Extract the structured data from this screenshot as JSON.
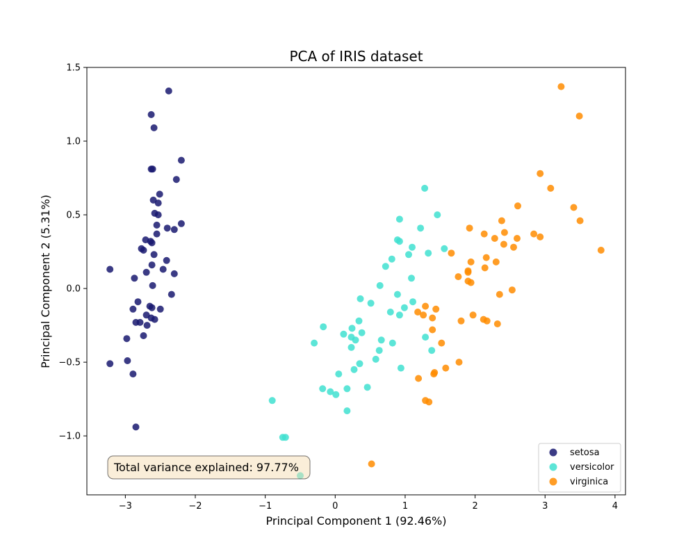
{
  "chart_data": {
    "type": "scatter",
    "title": "PCA of IRIS dataset",
    "xlabel": "Principal Component 1 (92.46%)",
    "ylabel": "Principal Component 2 (5.31%)",
    "xlim": [
      -3.55,
      4.15
    ],
    "ylim": [
      -1.4,
      1.5
    ],
    "xticks": [
      -3,
      -2,
      -1,
      0,
      1,
      2,
      3,
      4
    ],
    "xtick_labels": [
      "−3",
      "−2",
      "−1",
      "0",
      "1",
      "2",
      "3",
      "4"
    ],
    "yticks": [
      -1.0,
      -0.5,
      0.0,
      0.5,
      1.0,
      1.5
    ],
    "ytick_labels": [
      "−1.0",
      "−0.5",
      "0.0",
      "0.5",
      "1.0",
      "1.5"
    ],
    "grid": false,
    "legend_position": "bottom-right",
    "annotation": "Total variance explained: 97.77%",
    "annotation_position": "bottom-left",
    "series": [
      {
        "name": "setosa",
        "color": "#191970",
        "points": [
          [
            -2.38,
            1.34
          ],
          [
            -2.63,
            1.18
          ],
          [
            -2.59,
            1.09
          ],
          [
            -2.2,
            0.87
          ],
          [
            -2.63,
            0.81
          ],
          [
            -2.61,
            0.81
          ],
          [
            -2.27,
            0.74
          ],
          [
            -2.51,
            0.64
          ],
          [
            -2.6,
            0.6
          ],
          [
            -2.53,
            0.58
          ],
          [
            -2.58,
            0.51
          ],
          [
            -2.53,
            0.5
          ],
          [
            -2.2,
            0.44
          ],
          [
            -2.55,
            0.43
          ],
          [
            -2.4,
            0.41
          ],
          [
            -2.3,
            0.4
          ],
          [
            -2.55,
            0.37
          ],
          [
            -2.71,
            0.33
          ],
          [
            -2.64,
            0.32
          ],
          [
            -2.62,
            0.31
          ],
          [
            -2.77,
            0.27
          ],
          [
            -2.74,
            0.26
          ],
          [
            -2.59,
            0.23
          ],
          [
            -2.41,
            0.19
          ],
          [
            -2.62,
            0.16
          ],
          [
            -2.46,
            0.13
          ],
          [
            -3.22,
            0.13
          ],
          [
            -2.7,
            0.11
          ],
          [
            -2.3,
            0.1
          ],
          [
            -2.87,
            0.07
          ],
          [
            -2.61,
            0.02
          ],
          [
            -2.34,
            -0.04
          ],
          [
            -2.82,
            -0.09
          ],
          [
            -2.65,
            -0.12
          ],
          [
            -2.62,
            -0.13
          ],
          [
            -2.89,
            -0.14
          ],
          [
            -2.5,
            -0.14
          ],
          [
            -2.7,
            -0.18
          ],
          [
            -2.63,
            -0.2
          ],
          [
            -2.58,
            -0.21
          ],
          [
            -2.85,
            -0.23
          ],
          [
            -2.79,
            -0.23
          ],
          [
            -2.69,
            -0.25
          ],
          [
            -2.74,
            -0.32
          ],
          [
            -2.98,
            -0.34
          ],
          [
            -2.97,
            -0.49
          ],
          [
            -3.22,
            -0.51
          ],
          [
            -2.89,
            -0.58
          ],
          [
            -2.85,
            -0.94
          ]
        ]
      },
      {
        "name": "versicolor",
        "color": "#40e0d0",
        "points": [
          [
            1.28,
            0.68
          ],
          [
            1.46,
            0.5
          ],
          [
            0.92,
            0.47
          ],
          [
            1.22,
            0.41
          ],
          [
            0.89,
            0.33
          ],
          [
            0.92,
            0.32
          ],
          [
            1.1,
            0.28
          ],
          [
            1.56,
            0.27
          ],
          [
            1.33,
            0.24
          ],
          [
            1.05,
            0.23
          ],
          [
            0.81,
            0.2
          ],
          [
            0.72,
            0.15
          ],
          [
            1.09,
            0.07
          ],
          [
            0.64,
            0.02
          ],
          [
            0.89,
            -0.04
          ],
          [
            0.36,
            -0.07
          ],
          [
            1.11,
            -0.09
          ],
          [
            0.51,
            -0.1
          ],
          [
            0.99,
            -0.13
          ],
          [
            0.79,
            -0.16
          ],
          [
            0.92,
            -0.18
          ],
          [
            0.34,
            -0.22
          ],
          [
            -0.17,
            -0.26
          ],
          [
            0.24,
            -0.27
          ],
          [
            0.38,
            -0.3
          ],
          [
            0.12,
            -0.31
          ],
          [
            1.29,
            -0.33
          ],
          [
            0.23,
            -0.33
          ],
          [
            0.29,
            -0.35
          ],
          [
            0.66,
            -0.35
          ],
          [
            -0.3,
            -0.37
          ],
          [
            0.82,
            -0.37
          ],
          [
            0.23,
            -0.4
          ],
          [
            0.63,
            -0.42
          ],
          [
            1.38,
            -0.42
          ],
          [
            0.58,
            -0.48
          ],
          [
            0.35,
            -0.51
          ],
          [
            0.27,
            -0.55
          ],
          [
            0.94,
            -0.54
          ],
          [
            0.05,
            -0.58
          ],
          [
            0.46,
            -0.67
          ],
          [
            -0.18,
            -0.68
          ],
          [
            0.17,
            -0.68
          ],
          [
            -0.07,
            -0.7
          ],
          [
            0.01,
            -0.72
          ],
          [
            -0.9,
            -0.76
          ],
          [
            0.17,
            -0.83
          ],
          [
            -0.75,
            -1.01
          ],
          [
            -0.71,
            -1.01
          ],
          [
            -0.5,
            -1.27
          ]
        ]
      },
      {
        "name": "virginica",
        "color": "#ff8c00",
        "points": [
          [
            3.23,
            1.37
          ],
          [
            3.49,
            1.17
          ],
          [
            2.93,
            0.78
          ],
          [
            3.08,
            0.68
          ],
          [
            2.61,
            0.56
          ],
          [
            3.41,
            0.55
          ],
          [
            3.5,
            0.46
          ],
          [
            2.38,
            0.46
          ],
          [
            1.92,
            0.41
          ],
          [
            2.42,
            0.38
          ],
          [
            2.84,
            0.37
          ],
          [
            2.13,
            0.37
          ],
          [
            2.93,
            0.35
          ],
          [
            2.28,
            0.34
          ],
          [
            2.6,
            0.34
          ],
          [
            2.41,
            0.3
          ],
          [
            2.55,
            0.28
          ],
          [
            3.8,
            0.26
          ],
          [
            1.66,
            0.24
          ],
          [
            2.16,
            0.21
          ],
          [
            1.94,
            0.18
          ],
          [
            2.3,
            0.18
          ],
          [
            2.14,
            0.14
          ],
          [
            1.9,
            0.12
          ],
          [
            1.9,
            0.11
          ],
          [
            1.76,
            0.08
          ],
          [
            1.9,
            0.05
          ],
          [
            1.94,
            0.04
          ],
          [
            2.53,
            -0.01
          ],
          [
            2.35,
            -0.04
          ],
          [
            1.29,
            -0.12
          ],
          [
            1.44,
            -0.14
          ],
          [
            1.18,
            -0.16
          ],
          [
            1.26,
            -0.18
          ],
          [
            1.97,
            -0.18
          ],
          [
            1.39,
            -0.2
          ],
          [
            2.12,
            -0.21
          ],
          [
            2.17,
            -0.22
          ],
          [
            1.8,
            -0.22
          ],
          [
            2.32,
            -0.24
          ],
          [
            1.39,
            -0.28
          ],
          [
            1.52,
            -0.37
          ],
          [
            1.77,
            -0.5
          ],
          [
            1.58,
            -0.54
          ],
          [
            1.42,
            -0.57
          ],
          [
            1.41,
            -0.58
          ],
          [
            1.19,
            -0.61
          ],
          [
            1.29,
            -0.76
          ],
          [
            1.34,
            -0.77
          ],
          [
            0.52,
            -1.19
          ]
        ]
      }
    ]
  }
}
